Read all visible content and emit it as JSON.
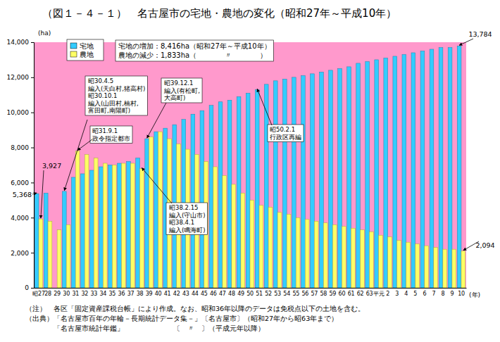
{
  "chart_data": {
    "type": "bar",
    "title": "（図１－４－１）　名古屋市の宅地・農地の変化（昭和27年～平成10年）",
    "y_label": "(ha)",
    "x_label": "(年)",
    "categories": [
      "昭27",
      "28",
      "29",
      "30",
      "31",
      "32",
      "33",
      "34",
      "35",
      "36",
      "37",
      "38",
      "39",
      "40",
      "41",
      "42",
      "43",
      "44",
      "45",
      "46",
      "47",
      "48",
      "49",
      "50",
      "51",
      "52",
      "53",
      "54",
      "55",
      "56",
      "57",
      "58",
      "59",
      "60",
      "61",
      "62",
      "63",
      "平元",
      "2",
      "3",
      "4",
      "5",
      "6",
      "7",
      "8",
      "9",
      "10"
    ],
    "series": [
      {
        "name": "宅地",
        "color": "#33ccff",
        "values": [
          5368,
          5400,
          null,
          5500,
          6300,
          6500,
          6700,
          6900,
          7000,
          7100,
          7200,
          7400,
          8500,
          8900,
          9100,
          9300,
          9600,
          9900,
          10100,
          10400,
          10600,
          10700,
          10900,
          11100,
          11300,
          11600,
          11800,
          11900,
          12000,
          12100,
          12200,
          12300,
          12400,
          12500,
          12600,
          12800,
          12900,
          13000,
          13100,
          13200,
          13300,
          13400,
          13500,
          13600,
          13700,
          13700,
          13784
        ]
      },
      {
        "name": "農地",
        "color": "#ffff66",
        "values": [
          3927,
          3800,
          3300,
          3600,
          7800,
          7600,
          7400,
          7100,
          7000,
          7100,
          7100,
          6800,
          8600,
          8900,
          8500,
          8200,
          7900,
          7600,
          7200,
          6900,
          6400,
          5900,
          5400,
          5000,
          4700,
          4600,
          4300,
          4200,
          4000,
          3900,
          3800,
          3700,
          3600,
          3500,
          3400,
          3300,
          3200,
          3000,
          2900,
          2700,
          2600,
          2500,
          2400,
          2300,
          2200,
          2200,
          2094
        ]
      }
    ],
    "ylim": [
      0,
      14000
    ],
    "yticks": [
      0,
      {
        "value": 2000,
        "label": "2,000"
      },
      {
        "value": 4000,
        "label": "4,000"
      },
      {
        "value": 6000,
        "label": "6,000"
      },
      {
        "value": 8000,
        "label": "8,000"
      },
      {
        "value": 10000,
        "label": "10,000"
      },
      {
        "value": 12000,
        "label": "12,000"
      },
      {
        "value": 14000,
        "label": "14,000"
      }
    ],
    "grid": false,
    "legend": "upper left",
    "info": [
      "宅地の増加：8,416ha（昭和27年～平成10年）",
      "農地の減少：1,833ha（　　　　〃　　　　）"
    ],
    "annotations": [
      {
        "text": "5,368",
        "category": "昭27",
        "series": "宅地"
      },
      {
        "text": "3,927",
        "category": "昭27",
        "series": "農地"
      },
      {
        "text": "昭30.4.5\n編入(天白村,猪高村)\n昭30.10.1\n編入(山田村,楠村,\n富田町,南陽町)",
        "category": "30",
        "series": "宅地"
      },
      {
        "text": "昭31.9.1\n政令指定都市",
        "category": "31",
        "series": "農地"
      },
      {
        "text": "昭39.12.1\n編入(有松町,\n大高町)",
        "category": "39",
        "series": "宅地"
      },
      {
        "text": "昭38.2.15\n編入(守山市)\n昭38.4.1\n編入(鳴海町)",
        "category": "38",
        "series": "農地"
      },
      {
        "text": "昭50.2.1\n行政区再編",
        "category": "51",
        "series": "宅地"
      },
      {
        "text": "13,784",
        "category": "10",
        "series": "宅地"
      },
      {
        "text": "2,094",
        "category": "10",
        "series": "農地"
      }
    ],
    "notes": [
      "（注）　各区「固定資産課税台帳」により作成。なお、昭和36年以降のデータは免税点以下の土地を含む。",
      "（出典）「名古屋市百年の年輪－長期統計データ集－」〔名古屋市〕（昭和27年から昭63年まで）",
      "　　　　「名古屋市統計年鑑」　　　　　　　〔　〃　〕（平成元年以降）"
    ]
  }
}
